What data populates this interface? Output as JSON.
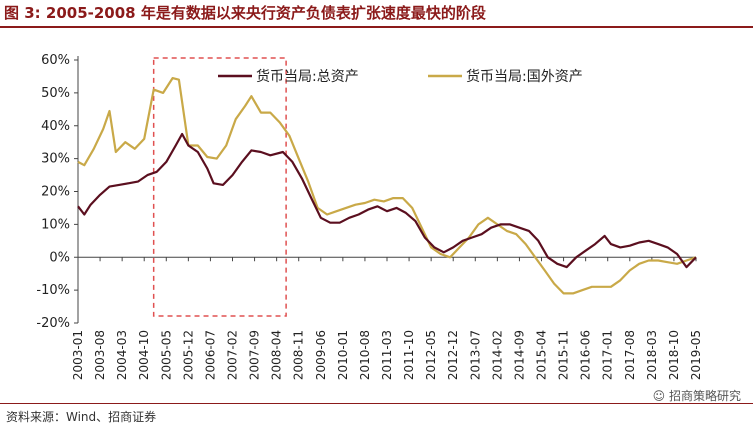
{
  "title": "图 3:  2005-2008 年是有数据以来央行资产负债表扩张速度最快的阶段",
  "source": "资料来源：Wind、招商证券",
  "watermark": "招商策略研究",
  "chart_data": {
    "type": "line",
    "ylim": [
      -0.2,
      0.6
    ],
    "yticks": [
      "-20%",
      "-10%",
      "0%",
      "10%",
      "20%",
      "30%",
      "40%",
      "50%",
      "60%"
    ],
    "xticks": [
      "2003-01",
      "2003-08",
      "2004-03",
      "2004-10",
      "2005-05",
      "2005-12",
      "2006-07",
      "2007-02",
      "2007-09",
      "2008-04",
      "2008-11",
      "2009-06",
      "2010-01",
      "2010-08",
      "2011-03",
      "2011-10",
      "2012-05",
      "2012-12",
      "2013-07",
      "2014-02",
      "2014-09",
      "2015-04",
      "2015-11",
      "2016-06",
      "2017-01",
      "2017-08",
      "2018-03",
      "2018-10",
      "2019-05"
    ],
    "legend_position": "top",
    "highlight_box": {
      "from": "2005-01",
      "to": "2008-07",
      "color": "#E05050"
    },
    "series": [
      {
        "name": "货币当局:总资产",
        "color": "#5B0F1F",
        "points": [
          [
            "2003-01",
            0.155
          ],
          [
            "2003-03",
            0.13
          ],
          [
            "2003-05",
            0.16
          ],
          [
            "2003-08",
            0.19
          ],
          [
            "2003-11",
            0.215
          ],
          [
            "2004-02",
            0.22
          ],
          [
            "2004-05",
            0.225
          ],
          [
            "2004-08",
            0.23
          ],
          [
            "2004-11",
            0.25
          ],
          [
            "2005-02",
            0.26
          ],
          [
            "2005-05",
            0.29
          ],
          [
            "2005-08",
            0.34
          ],
          [
            "2005-10",
            0.375
          ],
          [
            "2005-12",
            0.34
          ],
          [
            "2006-03",
            0.32
          ],
          [
            "2006-06",
            0.27
          ],
          [
            "2006-08",
            0.225
          ],
          [
            "2006-11",
            0.22
          ],
          [
            "2007-02",
            0.25
          ],
          [
            "2007-05",
            0.29
          ],
          [
            "2007-08",
            0.325
          ],
          [
            "2007-11",
            0.32
          ],
          [
            "2008-02",
            0.31
          ],
          [
            "2008-06",
            0.32
          ],
          [
            "2008-09",
            0.29
          ],
          [
            "2008-12",
            0.24
          ],
          [
            "2009-03",
            0.18
          ],
          [
            "2009-06",
            0.12
          ],
          [
            "2009-09",
            0.105
          ],
          [
            "2009-12",
            0.105
          ],
          [
            "2010-03",
            0.12
          ],
          [
            "2010-06",
            0.13
          ],
          [
            "2010-09",
            0.145
          ],
          [
            "2010-12",
            0.155
          ],
          [
            "2011-03",
            0.14
          ],
          [
            "2011-06",
            0.15
          ],
          [
            "2011-09",
            0.135
          ],
          [
            "2011-12",
            0.11
          ],
          [
            "2012-03",
            0.06
          ],
          [
            "2012-06",
            0.03
          ],
          [
            "2012-09",
            0.015
          ],
          [
            "2012-12",
            0.03
          ],
          [
            "2013-03",
            0.05
          ],
          [
            "2013-06",
            0.06
          ],
          [
            "2013-09",
            0.07
          ],
          [
            "2013-12",
            0.09
          ],
          [
            "2014-03",
            0.1
          ],
          [
            "2014-06",
            0.1
          ],
          [
            "2014-09",
            0.09
          ],
          [
            "2014-12",
            0.08
          ],
          [
            "2015-03",
            0.05
          ],
          [
            "2015-06",
            0.0
          ],
          [
            "2015-09",
            -0.02
          ],
          [
            "2015-12",
            -0.03
          ],
          [
            "2016-03",
            0.0
          ],
          [
            "2016-06",
            0.02
          ],
          [
            "2016-09",
            0.04
          ],
          [
            "2016-12",
            0.065
          ],
          [
            "2017-02",
            0.04
          ],
          [
            "2017-05",
            0.03
          ],
          [
            "2017-08",
            0.035
          ],
          [
            "2017-11",
            0.045
          ],
          [
            "2018-02",
            0.05
          ],
          [
            "2018-05",
            0.04
          ],
          [
            "2018-08",
            0.03
          ],
          [
            "2018-11",
            0.01
          ],
          [
            "2019-02",
            -0.03
          ],
          [
            "2019-05",
            0.0
          ]
        ]
      },
      {
        "name": "货币当局:国外资产",
        "color": "#C9A948",
        "points": [
          [
            "2003-01",
            0.29
          ],
          [
            "2003-03",
            0.28
          ],
          [
            "2003-06",
            0.33
          ],
          [
            "2003-09",
            0.39
          ],
          [
            "2003-11",
            0.445
          ],
          [
            "2004-01",
            0.32
          ],
          [
            "2004-04",
            0.35
          ],
          [
            "2004-07",
            0.33
          ],
          [
            "2004-10",
            0.36
          ],
          [
            "2005-01",
            0.51
          ],
          [
            "2005-04",
            0.5
          ],
          [
            "2005-07",
            0.545
          ],
          [
            "2005-09",
            0.54
          ],
          [
            "2005-12",
            0.34
          ],
          [
            "2006-03",
            0.34
          ],
          [
            "2006-06",
            0.305
          ],
          [
            "2006-09",
            0.3
          ],
          [
            "2006-12",
            0.34
          ],
          [
            "2007-03",
            0.42
          ],
          [
            "2007-06",
            0.46
          ],
          [
            "2007-08",
            0.49
          ],
          [
            "2007-11",
            0.44
          ],
          [
            "2008-02",
            0.44
          ],
          [
            "2008-05",
            0.41
          ],
          [
            "2008-08",
            0.37
          ],
          [
            "2008-11",
            0.3
          ],
          [
            "2009-02",
            0.23
          ],
          [
            "2009-05",
            0.15
          ],
          [
            "2009-08",
            0.13
          ],
          [
            "2009-11",
            0.14
          ],
          [
            "2010-02",
            0.15
          ],
          [
            "2010-05",
            0.16
          ],
          [
            "2010-08",
            0.165
          ],
          [
            "2010-11",
            0.175
          ],
          [
            "2011-02",
            0.17
          ],
          [
            "2011-05",
            0.18
          ],
          [
            "2011-08",
            0.18
          ],
          [
            "2011-11",
            0.15
          ],
          [
            "2012-02",
            0.09
          ],
          [
            "2012-05",
            0.03
          ],
          [
            "2012-08",
            0.01
          ],
          [
            "2012-11",
            0.0
          ],
          [
            "2013-02",
            0.03
          ],
          [
            "2013-05",
            0.06
          ],
          [
            "2013-08",
            0.1
          ],
          [
            "2013-11",
            0.12
          ],
          [
            "2014-02",
            0.1
          ],
          [
            "2014-05",
            0.08
          ],
          [
            "2014-08",
            0.07
          ],
          [
            "2014-11",
            0.04
          ],
          [
            "2015-02",
            0.0
          ],
          [
            "2015-05",
            -0.04
          ],
          [
            "2015-08",
            -0.08
          ],
          [
            "2015-11",
            -0.11
          ],
          [
            "2016-02",
            -0.11
          ],
          [
            "2016-05",
            -0.1
          ],
          [
            "2016-08",
            -0.09
          ],
          [
            "2016-11",
            -0.09
          ],
          [
            "2017-02",
            -0.09
          ],
          [
            "2017-05",
            -0.07
          ],
          [
            "2017-08",
            -0.04
          ],
          [
            "2017-11",
            -0.02
          ],
          [
            "2018-02",
            -0.01
          ],
          [
            "2018-05",
            -0.01
          ],
          [
            "2018-08",
            -0.015
          ],
          [
            "2018-11",
            -0.02
          ],
          [
            "2019-02",
            -0.01
          ],
          [
            "2019-05",
            0.0
          ]
        ]
      }
    ]
  }
}
